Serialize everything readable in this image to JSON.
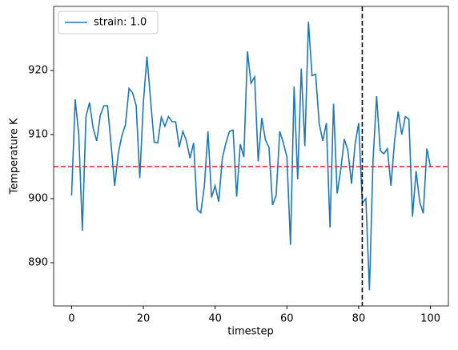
{
  "chart_data": {
    "type": "line",
    "x": [
      0,
      1,
      2,
      3,
      4,
      5,
      6,
      7,
      8,
      9,
      10,
      11,
      12,
      13,
      14,
      15,
      16,
      17,
      18,
      19,
      20,
      21,
      22,
      23,
      24,
      25,
      26,
      27,
      28,
      29,
      30,
      31,
      32,
      33,
      34,
      35,
      36,
      37,
      38,
      39,
      40,
      41,
      42,
      43,
      44,
      45,
      46,
      47,
      48,
      49,
      50,
      51,
      52,
      53,
      54,
      55,
      56,
      57,
      58,
      59,
      60,
      61,
      62,
      63,
      64,
      65,
      66,
      67,
      68,
      69,
      70,
      71,
      72,
      73,
      74,
      75,
      76,
      77,
      78,
      79,
      80,
      81,
      82,
      83,
      84,
      85,
      86,
      87,
      88,
      89,
      90,
      91,
      92,
      93,
      94,
      95,
      96,
      97,
      98,
      99,
      100
    ],
    "series": [
      {
        "name": "strain: 1.0",
        "color": "#1f77b4",
        "values": [
          900.5,
          915.5,
          910,
          895,
          912.8,
          915,
          911,
          909,
          913,
          914.5,
          914.5,
          908.5,
          902,
          907,
          909.8,
          911.5,
          917.2,
          916.5,
          914.5,
          903.2,
          915,
          922.2,
          915.5,
          908.8,
          908.7,
          912.7,
          911.3,
          912.8,
          912,
          912,
          908,
          910.5,
          909,
          906.3,
          908.7,
          898.3,
          897.8,
          902,
          910.5,
          900.2,
          902,
          899.5,
          906.3,
          908.7,
          910.5,
          910.7,
          900.3,
          908.5,
          906.5,
          923,
          918,
          919,
          905.8,
          912.6,
          909.2,
          908,
          899,
          900.5,
          910.5,
          908.7,
          906.5,
          892.8,
          917.5,
          903,
          920.3,
          908.2,
          927.6,
          919.2,
          919.4,
          911.7,
          909,
          911.8,
          895.5,
          914.8,
          900.8,
          904.5,
          909.3,
          907.5,
          902.3,
          908.5,
          911.8,
          899.3,
          900,
          885.7,
          906,
          916,
          907.5,
          907,
          907.8,
          902,
          909,
          913.6,
          910,
          912.8,
          912.4,
          897.2,
          904.3,
          899.5,
          897.7,
          907.8,
          905
        ]
      }
    ],
    "xlabel": "timestep",
    "ylabel": "Temperature K",
    "xlim": [
      -5,
      105
    ],
    "ylim": [
      883.25,
      930
    ],
    "xticks": [
      0,
      20,
      40,
      60,
      80,
      100
    ],
    "yticks": [
      890,
      900,
      910,
      920
    ],
    "hline": {
      "value": 905,
      "color": "#d62728"
    },
    "vline": {
      "value": 81,
      "color": "#000000"
    },
    "legend": "upper left"
  }
}
